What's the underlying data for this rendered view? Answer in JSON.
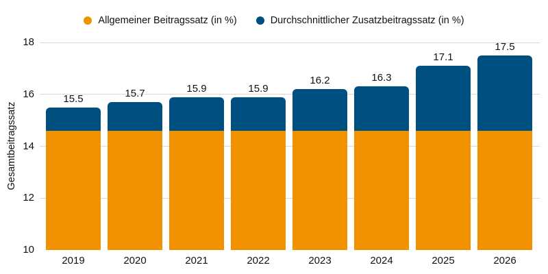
{
  "chart_data": {
    "type": "bar",
    "stacked": true,
    "categories": [
      "2019",
      "2020",
      "2021",
      "2022",
      "2023",
      "2024",
      "2025",
      "2026"
    ],
    "series": [
      {
        "name": "Allgemeiner Beitragssatz (in %)",
        "color": "#F39200",
        "values": [
          14.6,
          14.6,
          14.6,
          14.6,
          14.6,
          14.6,
          14.6,
          14.6
        ]
      },
      {
        "name": "Durchschnittlicher Zusatzbeitragssatz (in %)",
        "color": "#004F81",
        "values": [
          0.9,
          1.1,
          1.3,
          1.3,
          1.6,
          1.7,
          2.5,
          2.9
        ]
      }
    ],
    "totals": [
      15.5,
      15.7,
      15.9,
      15.9,
      16.2,
      16.3,
      17.1,
      17.5
    ],
    "total_labels": [
      "15.5",
      "15.7",
      "15.9",
      "15.9",
      "16.2",
      "16.3",
      "17.1",
      "17.5"
    ],
    "xlabel": "",
    "ylabel": "Gesamtbeitragssatz",
    "ylim": [
      10,
      18
    ],
    "yticks": [
      10,
      12,
      14,
      16,
      18
    ],
    "ytick_labels": [
      "10",
      "12",
      "14",
      "16",
      "18"
    ],
    "grid": true,
    "gridline_color": "#D9D9D9",
    "legend_position": "top",
    "text_color": "#111111",
    "background": "#FFFFFF"
  }
}
